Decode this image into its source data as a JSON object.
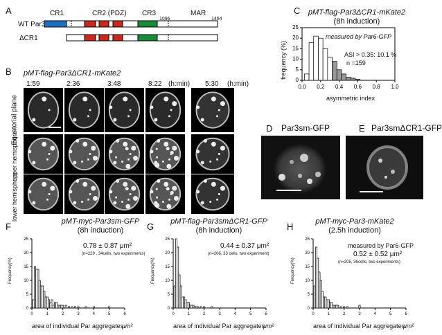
{
  "panels": {
    "A": "A",
    "B": "B",
    "C": "C",
    "D": "D",
    "E": "E",
    "F": "F",
    "G": "G",
    "H": "H"
  },
  "panelA": {
    "domains": [
      "CR1",
      "CR2 (PDZ)",
      "CR3",
      "MAR"
    ],
    "constructs": [
      "WT Par3",
      "ΔCR1"
    ],
    "positions": [
      "1096",
      "1464"
    ],
    "colors": {
      "cr1": "#1f6fc0",
      "cr2": "#c8281e",
      "cr3": "#1a8a3a"
    }
  },
  "panelB": {
    "title": "pMT-flag-Par3ΔCR1-mKate2",
    "timepoints": [
      "1:59",
      "2:36",
      "3:48",
      "8:22"
    ],
    "unit": "(h:min)",
    "side_time": "5:30",
    "side_unit": "(h:min)",
    "rows": [
      "Equatorial plane",
      "upper hemisphere",
      "lower hemisphere"
    ]
  },
  "panelC": {
    "title": "pMT-flag-Par3ΔCR1-mKate2",
    "subtitle": "(8h induction)",
    "note": "measured by  Par6-GFP",
    "asi": "ASI > 0.35: 10.1 %",
    "n": "n =159",
    "xlabel": "asymmetric index",
    "ylabel": "frequency (%)"
  },
  "panelD": {
    "title": "Par3sm-GFP"
  },
  "panelE": {
    "title": "Par3smΔCR1-GFP"
  },
  "panelF": {
    "title": "pMT-myc-Par3sm-GFP",
    "subtitle": "(8h induction)",
    "mean": "0.78 ± 0.87 μm²",
    "detail": "(n=229 , 34cells, two experiments)"
  },
  "panelG": {
    "title": "pMT-flag-Par3smΔCR1-GFP",
    "subtitle": "(8h induction)",
    "mean": "0.44 ± 0.37 μm²",
    "detail": "(n=206, 33 cells, two experiment)"
  },
  "panelH": {
    "title": "pMT-myc-Par3-mKate2",
    "subtitle": "(2.5h induction)",
    "note": "measured by Par6-GFP",
    "mean": "0.52 ± 0.52 μm²",
    "detail": "(n=205, 36cells, two experiments)"
  },
  "bottom_axis": {
    "xlabel": "area of   individual Par aggregates",
    "unit": "μm²",
    "ylabel": "Frequency(%)"
  },
  "chart_data": [
    {
      "type": "bar",
      "title": "pMT-flag-Par3ΔCR1-mKate2",
      "xlabel": "asymmetric index",
      "ylabel": "frequency (%)",
      "x": [
        0.05,
        0.1,
        0.15,
        0.2,
        0.25,
        0.3,
        0.35,
        0.4,
        0.45,
        0.5,
        0.55,
        0.6
      ],
      "values": [
        3,
        18,
        21,
        20,
        15,
        11,
        9,
        5,
        3,
        1.5,
        1,
        0.5
      ],
      "xlim": [
        0,
        1
      ],
      "ylim": [
        0,
        25
      ],
      "xticks": [
        "0.0",
        "0.2",
        "0.4",
        "0.6",
        "0.8",
        "1.0"
      ],
      "yticks": [
        "0",
        "5",
        "10",
        "15",
        "20",
        "25"
      ]
    },
    {
      "type": "bar",
      "title": "pMT-myc-Par3sm-GFP",
      "ylabel": "Frequency(%)",
      "x": [
        0.1,
        0.2,
        0.3,
        0.4,
        0.5,
        0.6,
        0.7,
        0.8,
        0.9,
        1.0,
        1.1,
        1.2,
        1.3,
        1.4,
        1.5,
        1.6,
        1.7,
        1.8,
        1.9,
        2.0,
        2.2,
        2.4,
        2.6,
        2.8,
        3.0,
        3.5,
        4.0,
        5.0
      ],
      "values": [
        3,
        15,
        14,
        14,
        10,
        8,
        8,
        6,
        4,
        4,
        3,
        2,
        3,
        1,
        2,
        2,
        1,
        1,
        1,
        1,
        1,
        0.5,
        0.5,
        0.5,
        0.5,
        0.5,
        0.5,
        0.5
      ],
      "xlim": [
        0,
        6
      ],
      "ylim": [
        0,
        25
      ],
      "xticks": [
        "0",
        "1",
        "2",
        "3",
        "4",
        "5",
        "6"
      ],
      "yticks": [
        "0",
        "5",
        "10",
        "15",
        "20",
        "25"
      ]
    },
    {
      "type": "bar",
      "title": "pMT-flag-Par3smΔCR1-GFP",
      "ylabel": "Frequency(%)",
      "x": [
        0.1,
        0.2,
        0.3,
        0.4,
        0.5,
        0.6,
        0.7,
        0.8,
        0.9,
        1.0,
        1.1,
        1.2,
        1.3,
        1.4,
        1.5,
        1.6,
        1.8,
        2.0,
        2.5
      ],
      "values": [
        8,
        25,
        22,
        12,
        8,
        4,
        4,
        3,
        2,
        2,
        1,
        1,
        1,
        0.5,
        0.5,
        0.5,
        0.5,
        0.5,
        0.5
      ],
      "xlim": [
        0,
        6
      ],
      "ylim": [
        0,
        25
      ],
      "xticks": [
        "0",
        "1",
        "2",
        "3",
        "4",
        "5",
        "6"
      ],
      "yticks": [
        "0",
        "5",
        "10",
        "15",
        "20",
        "25"
      ]
    },
    {
      "type": "bar",
      "title": "pMT-myc-Par3-mKate2",
      "ylabel": "Frequency(%)",
      "x": [
        0.1,
        0.2,
        0.3,
        0.4,
        0.5,
        0.6,
        0.7,
        0.8,
        0.9,
        1.0,
        1.1,
        1.2,
        1.3,
        1.4,
        1.5,
        1.6,
        1.8,
        2.0,
        2.2,
        3.0
      ],
      "values": [
        8,
        22,
        18,
        13,
        10,
        6,
        4,
        4,
        3,
        3,
        2,
        2,
        1,
        1,
        1,
        1,
        0.5,
        0.5,
        0.5,
        1
      ],
      "xlim": [
        0,
        6
      ],
      "ylim": [
        0,
        25
      ],
      "xticks": [
        "0",
        "1",
        "2",
        "3",
        "4",
        "5",
        "6"
      ],
      "yticks": [
        "0",
        "5",
        "10",
        "15",
        "20",
        "25"
      ]
    }
  ]
}
